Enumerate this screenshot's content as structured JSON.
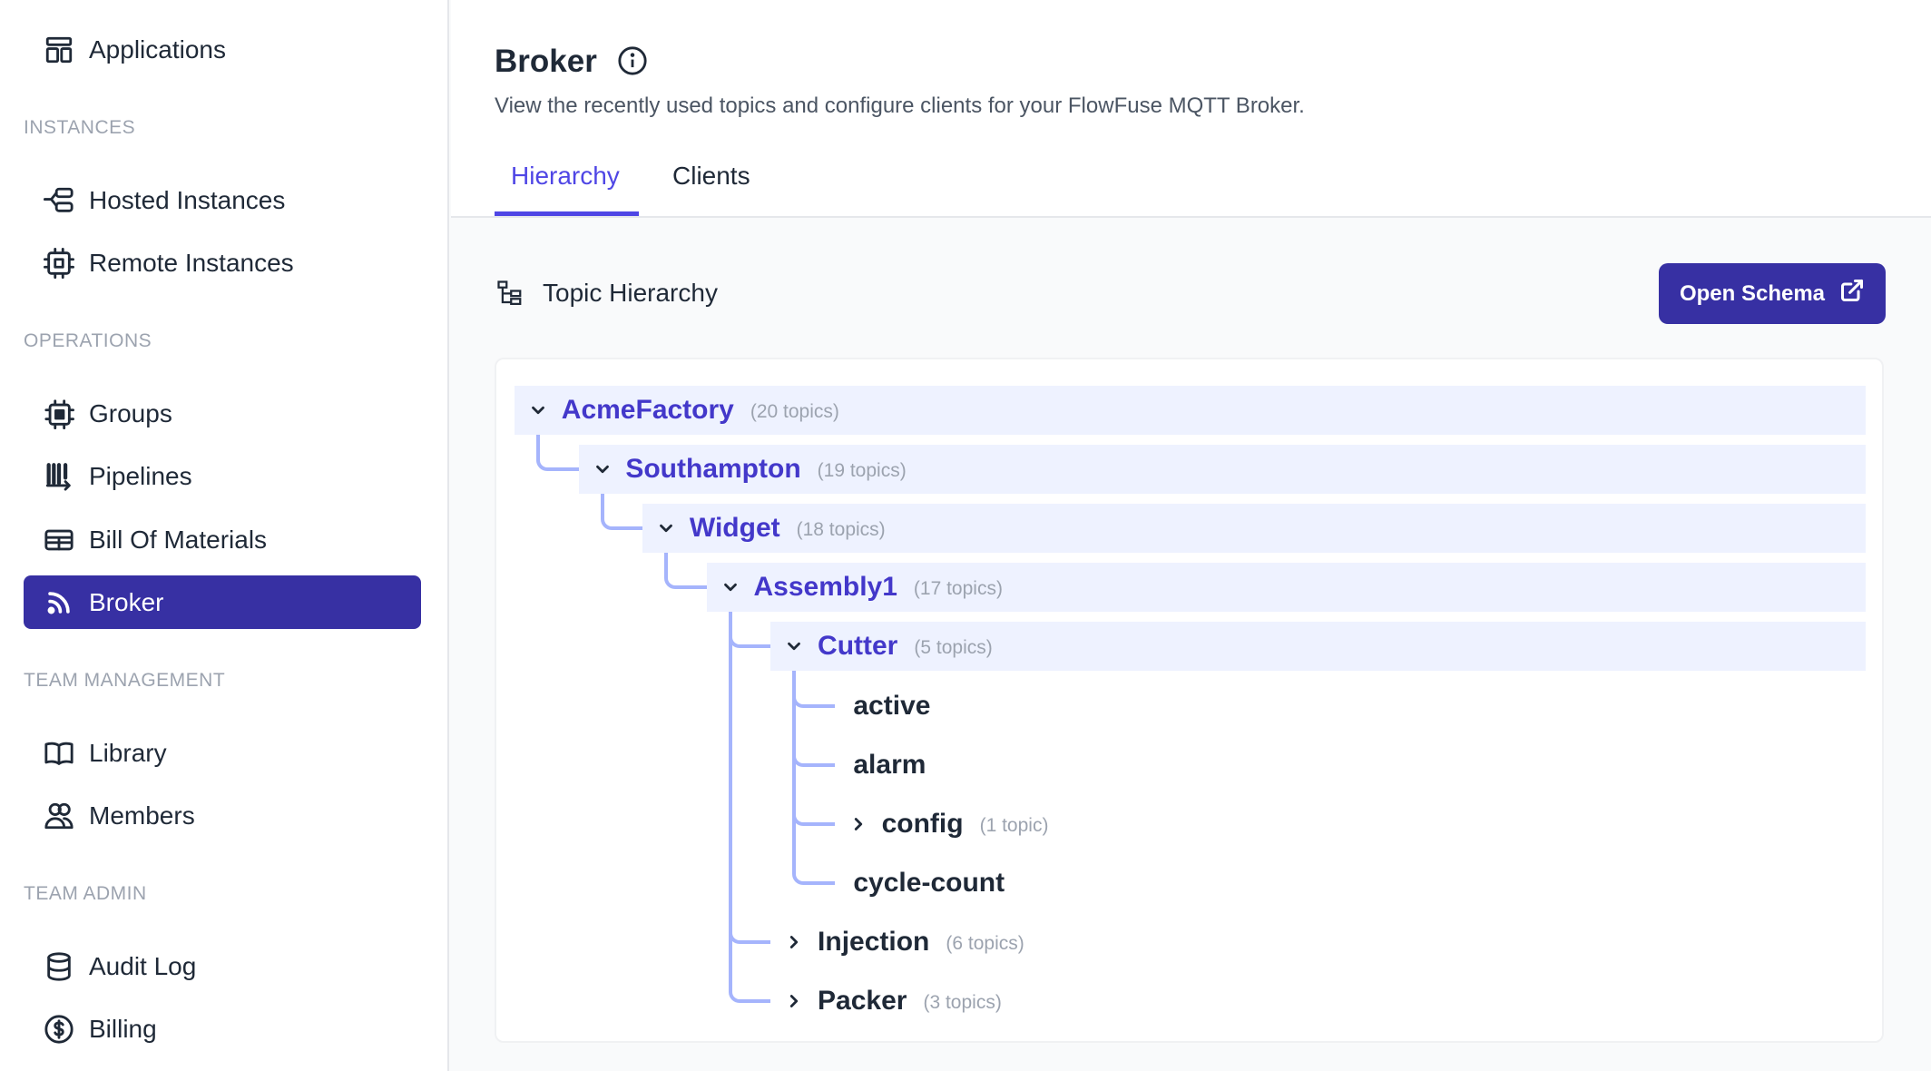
{
  "sidebar": {
    "top_item": {
      "label": "Applications",
      "icon": "applications-icon"
    },
    "sections": [
      {
        "title": "INSTANCES",
        "items": [
          {
            "label": "Hosted Instances",
            "icon": "hosted-instances-icon"
          },
          {
            "label": "Remote Instances",
            "icon": "chip-icon"
          }
        ]
      },
      {
        "title": "OPERATIONS",
        "items": [
          {
            "label": "Groups",
            "icon": "groups-chip-icon"
          },
          {
            "label": "Pipelines",
            "icon": "pipelines-icon"
          },
          {
            "label": "Bill Of Materials",
            "icon": "table-icon"
          },
          {
            "label": "Broker",
            "icon": "broadcast-icon",
            "active": true
          }
        ]
      },
      {
        "title": "TEAM MANAGEMENT",
        "items": [
          {
            "label": "Library",
            "icon": "book-icon"
          },
          {
            "label": "Members",
            "icon": "users-icon"
          }
        ]
      },
      {
        "title": "TEAM ADMIN",
        "items": [
          {
            "label": "Audit Log",
            "icon": "database-icon"
          },
          {
            "label": "Billing",
            "icon": "dollar-icon"
          }
        ]
      }
    ]
  },
  "header": {
    "title": "Broker",
    "subtitle": "View the recently used topics and configure clients for your FlowFuse MQTT Broker.",
    "tabs": [
      {
        "label": "Hierarchy",
        "active": true
      },
      {
        "label": "Clients"
      }
    ]
  },
  "hierarchy": {
    "title": "Topic Hierarchy",
    "open_schema_label": "Open Schema",
    "nodes": [
      {
        "name": "AcmeFactory",
        "count": "(20 topics)",
        "depth": 0,
        "state": "expanded"
      },
      {
        "name": "Southampton",
        "count": "(19 topics)",
        "depth": 1,
        "state": "expanded"
      },
      {
        "name": "Widget",
        "count": "(18 topics)",
        "depth": 2,
        "state": "expanded"
      },
      {
        "name": "Assembly1",
        "count": "(17 topics)",
        "depth": 3,
        "state": "expanded"
      },
      {
        "name": "Cutter",
        "count": "(5 topics)",
        "depth": 4,
        "state": "expanded"
      },
      {
        "name": "active",
        "depth": 5,
        "state": "leaf"
      },
      {
        "name": "alarm",
        "depth": 5,
        "state": "leaf"
      },
      {
        "name": "config",
        "count": "(1 topic)",
        "depth": 5,
        "state": "collapsed"
      },
      {
        "name": "cycle-count",
        "depth": 5,
        "state": "leaf"
      },
      {
        "name": "Injection",
        "count": "(6 topics)",
        "depth": 4,
        "state": "collapsed"
      },
      {
        "name": "Packer",
        "count": "(3 topics)",
        "depth": 4,
        "state": "collapsed"
      }
    ]
  },
  "colors": {
    "accent": "#3730a3",
    "tree_line": "#a5b4fc",
    "row_highlight": "#eef2ff"
  }
}
